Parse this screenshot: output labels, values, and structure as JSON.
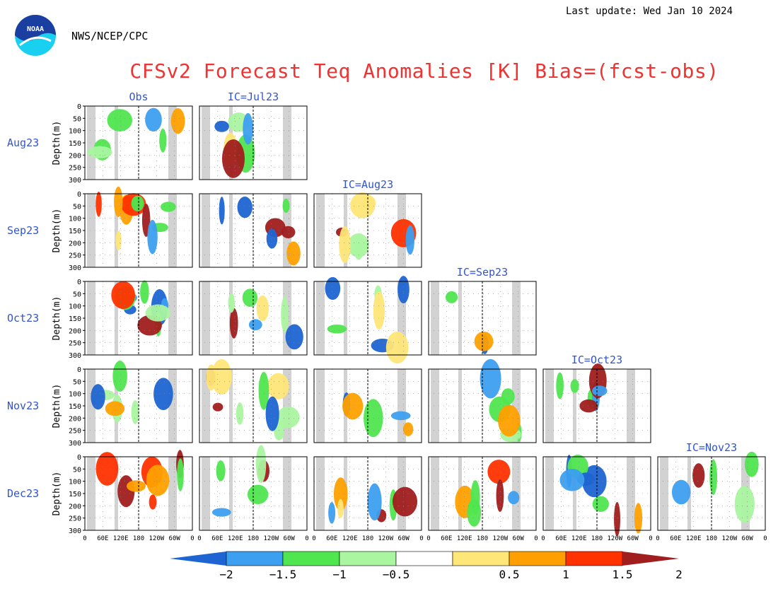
{
  "header": {
    "last_update": "Last update: Wed Jan 10 2024",
    "agency": "NWS/NCEP/CPC",
    "title": "CFSv2 Forecast Teq Anomalies [K] Bias=(fcst-obs)",
    "logo_text": "NOAA"
  },
  "chart_data": {
    "type": "heatmap",
    "title": "CFSv2 Forecast Teq Anomalies [K] Bias=(fcst-obs)",
    "ylabel": "Depth(m)",
    "yticks": [
      "0",
      "50",
      "100",
      "150",
      "200",
      "250",
      "300"
    ],
    "ylim": [
      0,
      300
    ],
    "xticks": [
      "0",
      "60E",
      "120E",
      "180",
      "120W",
      "60W",
      "0"
    ],
    "columns": [
      "Obs",
      "IC=Jul23",
      "IC=Aug23",
      "IC=Sep23",
      "IC=Oct23",
      "IC=Nov23"
    ],
    "rows": [
      "Aug23",
      "Sep23",
      "Oct23",
      "Nov23",
      "Dec23"
    ],
    "colorbar": {
      "labels": [
        "−2",
        "−1.5",
        "−1",
        "−0.5",
        "0.5",
        "1",
        "1.5",
        "2"
      ],
      "colors": [
        "#1e64d2",
        "#3c9ff0",
        "#50e650",
        "#aaf5a0",
        "#ffffff",
        "#ffe678",
        "#ffa000",
        "#ff3200",
        "#a01e1e"
      ]
    }
  }
}
